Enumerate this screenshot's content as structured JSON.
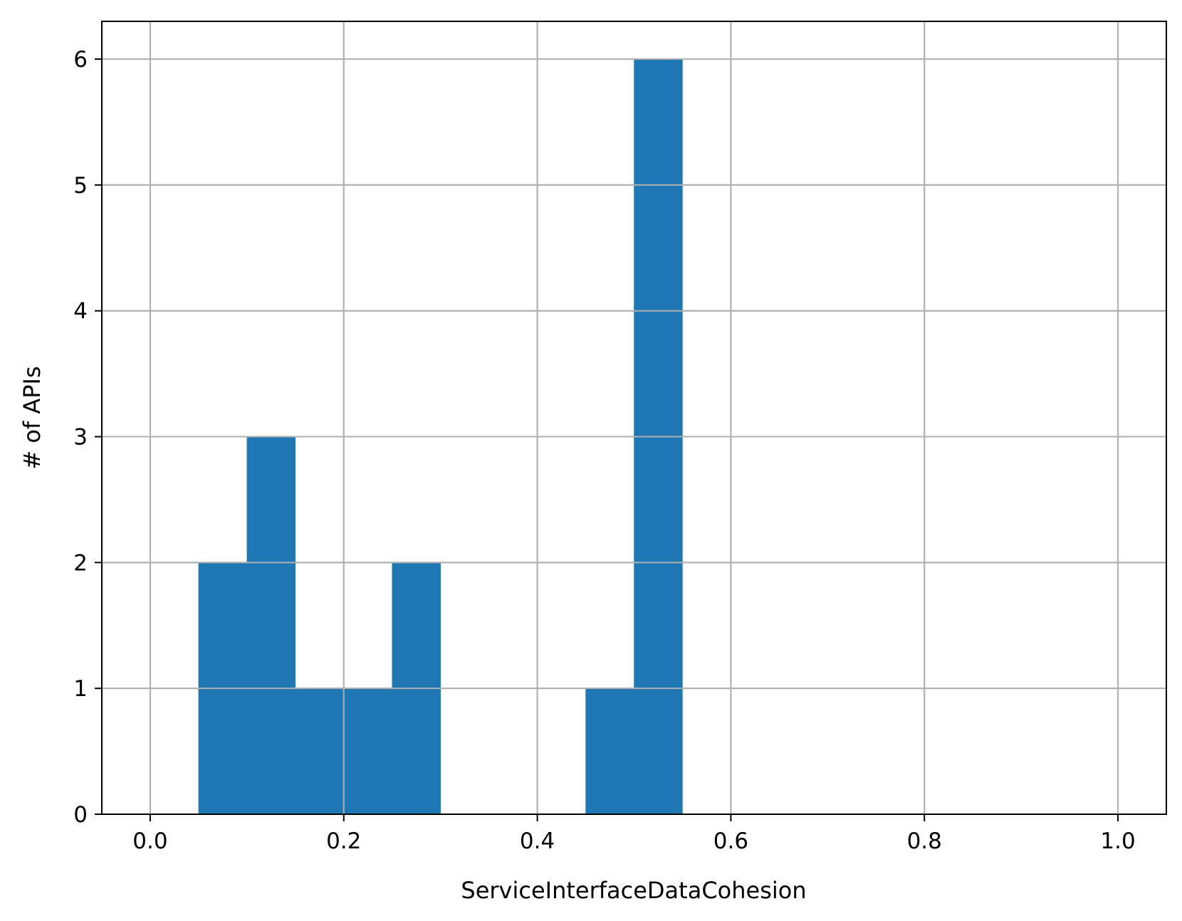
{
  "chart_data": {
    "type": "bar",
    "title": "",
    "xlabel": "ServiceInterfaceDataCohesion",
    "ylabel": "# of APIs",
    "xlim": [
      -0.05,
      1.05
    ],
    "ylim": [
      0,
      6.3
    ],
    "xticks": [
      0.0,
      0.2,
      0.4,
      0.6,
      0.8,
      1.0
    ],
    "xtick_labels": [
      "0.0",
      "0.2",
      "0.4",
      "0.6",
      "0.8",
      "1.0"
    ],
    "yticks": [
      0,
      1,
      2,
      3,
      4,
      5,
      6
    ],
    "ytick_labels": [
      "0",
      "1",
      "2",
      "3",
      "4",
      "5",
      "6"
    ],
    "grid": true,
    "bar_color": "#1f77b4",
    "bins": [
      {
        "x0": 0.05,
        "x1": 0.1,
        "value": 2
      },
      {
        "x0": 0.1,
        "x1": 0.15,
        "value": 3
      },
      {
        "x0": 0.15,
        "x1": 0.2,
        "value": 1
      },
      {
        "x0": 0.2,
        "x1": 0.25,
        "value": 1
      },
      {
        "x0": 0.25,
        "x1": 0.3,
        "value": 2
      },
      {
        "x0": 0.45,
        "x1": 0.5,
        "value": 1
      },
      {
        "x0": 0.5,
        "x1": 0.55,
        "value": 6
      }
    ]
  }
}
